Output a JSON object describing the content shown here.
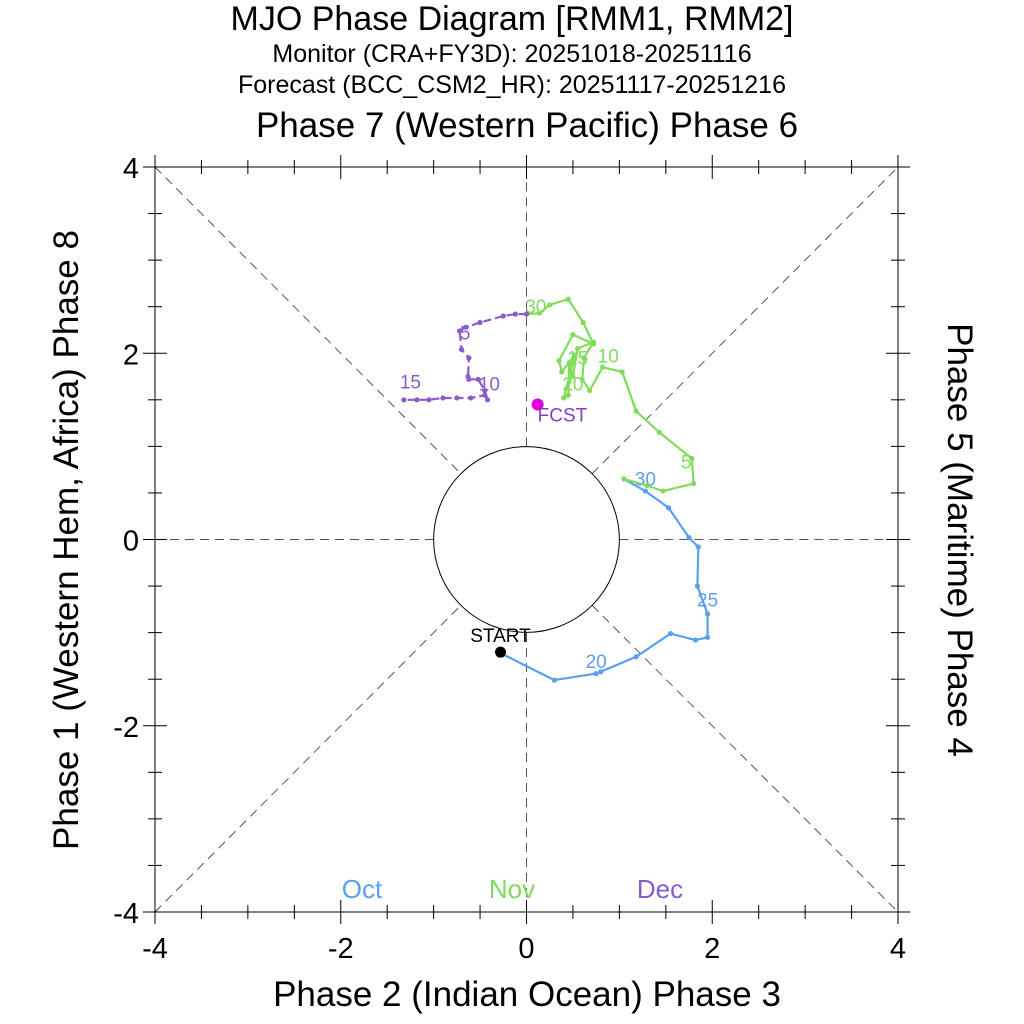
{
  "chart_data": {
    "type": "line",
    "title": "MJO Phase Diagram [RMM1, RMM2]",
    "subtitle_monitor": "Monitor (CRA+FY3D): 20251018-20251116",
    "subtitle_forecast": "Forecast (BCC_CSM2_HR): 20251117-20251216",
    "top_axis_label": "Phase 7 (Western Pacific) Phase 6",
    "xlabel": "Phase 2 (Indian Ocean) Phase 3",
    "ylabel": "Phase 1 (Western Hem, Africa) Phase 8",
    "right_label": "Phase 5 (Maritime) Phase 4",
    "xlim": [
      -4,
      4
    ],
    "ylim": [
      -4,
      4
    ],
    "xticks": [
      "-4",
      "-2",
      "0",
      "2",
      "4"
    ],
    "yticks": [
      "-4",
      "-2",
      "0",
      "2",
      "4"
    ],
    "inner_circle_radius": 1,
    "grid": "dashed phase boundaries",
    "start_label": "START",
    "forecast_label": "FCST",
    "legend": [
      {
        "name": "Oct",
        "color": "#5aa0ee"
      },
      {
        "name": "Nov",
        "color": "#80dd5c"
      },
      {
        "name": "Dec",
        "color": "#8a5cc8"
      }
    ],
    "series": [
      {
        "name": "Oct",
        "color": "#5aa0ee",
        "dashed": false,
        "points": [
          [
            -0.28,
            -1.22
          ],
          [
            0.3,
            -1.51
          ],
          [
            0.75,
            -1.44
          ],
          [
            0.8,
            -1.42
          ],
          [
            1.18,
            -1.26
          ],
          [
            1.55,
            -1.01
          ],
          [
            1.82,
            -1.08
          ],
          [
            1.95,
            -1.05
          ],
          [
            1.95,
            -0.8
          ],
          [
            1.84,
            -0.5
          ],
          [
            1.85,
            -0.08
          ],
          [
            1.75,
            0.02
          ],
          [
            1.53,
            0.34
          ],
          [
            1.28,
            0.52
          ],
          [
            1.05,
            0.65
          ]
        ],
        "labels": [
          {
            "text": "20",
            "x": 0.75,
            "y": -1.38
          },
          {
            "text": "25",
            "x": 1.95,
            "y": -0.72
          },
          {
            "text": "30",
            "x": 1.28,
            "y": 0.58
          }
        ]
      },
      {
        "name": "Nov",
        "color": "#80dd5c",
        "dashed": false,
        "points": [
          [
            1.05,
            0.65
          ],
          [
            1.3,
            0.58
          ],
          [
            1.47,
            0.52
          ],
          [
            1.8,
            0.6
          ],
          [
            1.78,
            0.87
          ],
          [
            1.43,
            1.15
          ],
          [
            1.18,
            1.38
          ],
          [
            1.03,
            1.8
          ],
          [
            0.82,
            1.85
          ],
          [
            0.68,
            1.6
          ],
          [
            0.6,
            1.72
          ],
          [
            0.62,
            1.95
          ],
          [
            0.72,
            2.12
          ],
          [
            0.55,
            2.05
          ],
          [
            0.5,
            1.75
          ],
          [
            0.46,
            1.9
          ],
          [
            0.45,
            1.55
          ],
          [
            0.4,
            1.52
          ],
          [
            0.52,
            1.98
          ],
          [
            0.38,
            1.8
          ],
          [
            0.35,
            1.92
          ],
          [
            0.5,
            2.2
          ],
          [
            0.72,
            2.1
          ],
          [
            0.61,
            2.33
          ],
          [
            0.45,
            2.58
          ],
          [
            0.25,
            2.52
          ],
          [
            0.14,
            2.43
          ],
          [
            0.0,
            2.42
          ]
        ],
        "labels": [
          {
            "text": "5",
            "x": 1.72,
            "y": 0.76
          },
          {
            "text": "10",
            "x": 0.88,
            "y": 1.9
          },
          {
            "text": "15",
            "x": 0.55,
            "y": 1.88
          },
          {
            "text": "20",
            "x": 0.5,
            "y": 1.6
          },
          {
            "text": "30",
            "x": 0.1,
            "y": 2.43
          }
        ]
      },
      {
        "name": "Dec",
        "color": "#8a5cc8",
        "dashed": true,
        "points": [
          [
            0.0,
            2.42
          ],
          [
            -0.12,
            2.42
          ],
          [
            -0.25,
            2.4
          ],
          [
            -0.5,
            2.33
          ],
          [
            -0.65,
            2.28
          ],
          [
            -0.72,
            2.24
          ],
          [
            -0.7,
            2.04
          ],
          [
            -0.62,
            1.95
          ],
          [
            -0.63,
            1.75
          ],
          [
            -0.62,
            1.72
          ],
          [
            -0.52,
            1.72
          ],
          [
            -0.45,
            1.6
          ],
          [
            -0.42,
            1.5
          ],
          [
            -0.45,
            1.55
          ],
          [
            -0.6,
            1.52
          ],
          [
            -0.75,
            1.52
          ],
          [
            -0.9,
            1.52
          ],
          [
            -1.05,
            1.5
          ],
          [
            -1.18,
            1.5
          ],
          [
            -1.32,
            1.5
          ]
        ],
        "labels": [
          {
            "text": "5",
            "x": -0.66,
            "y": 2.15
          },
          {
            "text": "10",
            "x": -0.4,
            "y": 1.6
          },
          {
            "text": "15",
            "x": -1.25,
            "y": 1.62
          }
        ]
      }
    ],
    "start_point": {
      "x": -0.28,
      "y": -1.21
    },
    "forecast_point": {
      "x": 0.12,
      "y": 1.45
    },
    "start_color": "#000000",
    "forecast_color": "#dd00dd",
    "forecast_text_color": "#8a3cc8"
  }
}
